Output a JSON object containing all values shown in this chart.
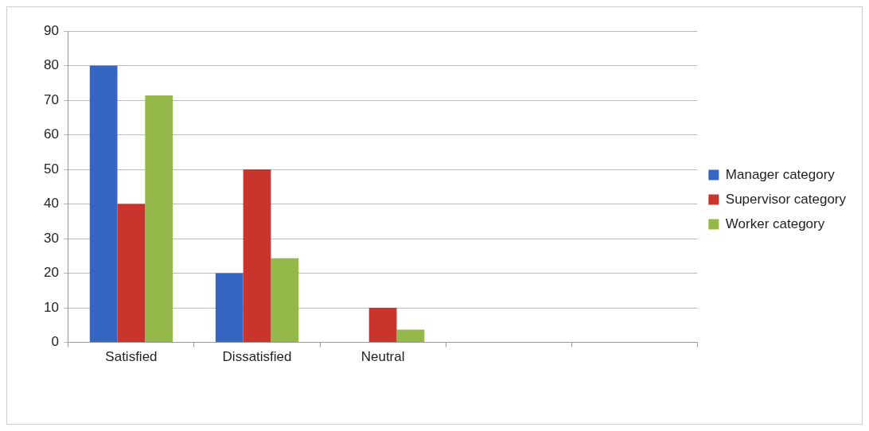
{
  "chart_data": {
    "type": "bar",
    "categories": [
      "Satisfied",
      "Dissatisfied",
      "Neutral",
      null,
      null
    ],
    "series": [
      {
        "name": "Manager category",
        "color": "#3566c4",
        "values": [
          80,
          20,
          0,
          null,
          null
        ]
      },
      {
        "name": "Supervisor category",
        "color": "#c9342c",
        "values": [
          40,
          50,
          10,
          null,
          null
        ]
      },
      {
        "name": "Worker category",
        "color": "#95b84a",
        "values": [
          71.4,
          24.3,
          3.7,
          null,
          null
        ]
      }
    ],
    "ylim": [
      0,
      90
    ],
    "yticks": [
      0,
      10,
      20,
      30,
      40,
      50,
      60,
      70,
      80,
      90
    ],
    "grid": "y",
    "legend": "right"
  }
}
